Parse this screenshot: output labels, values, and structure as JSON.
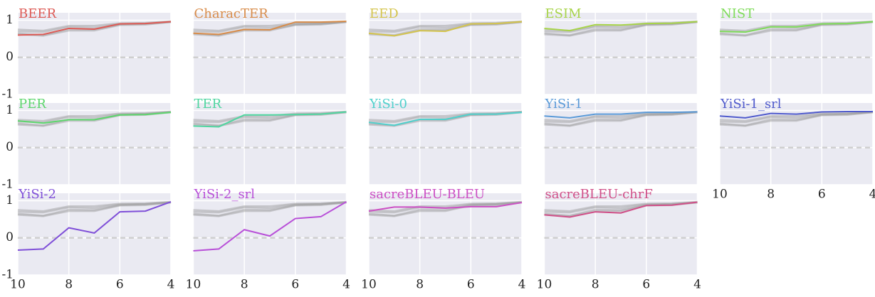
{
  "chart_data": {
    "type": "line",
    "x": [
      10,
      9,
      8,
      7,
      6,
      5,
      4
    ],
    "xlim": [
      10,
      4
    ],
    "xticks": [
      10,
      8,
      6,
      4
    ],
    "ylim": [
      -1,
      1.2
    ],
    "yticks": [
      -1,
      0,
      1
    ],
    "grid": true,
    "reference_line": 0,
    "background_color": "#9a9a9a",
    "background": [
      [
        0.7,
        0.68,
        0.82,
        0.8,
        0.9,
        0.91,
        0.96
      ],
      [
        0.65,
        0.6,
        0.76,
        0.75,
        0.88,
        0.9,
        0.95
      ],
      [
        0.75,
        0.72,
        0.85,
        0.85,
        0.92,
        0.93,
        0.97
      ],
      [
        0.62,
        0.58,
        0.72,
        0.72,
        0.87,
        0.88,
        0.95
      ]
    ],
    "panels": [
      {
        "title": "BEER",
        "color": "#dd5a55",
        "values": [
          0.6,
          0.62,
          0.78,
          0.76,
          0.9,
          0.91,
          0.96
        ]
      },
      {
        "title": "CharacTER",
        "color": "#d88c4a",
        "values": [
          0.65,
          0.62,
          0.75,
          0.74,
          0.95,
          0.95,
          0.97
        ]
      },
      {
        "title": "EED",
        "color": "#d4c44c",
        "values": [
          0.65,
          0.58,
          0.72,
          0.7,
          0.9,
          0.91,
          0.96
        ]
      },
      {
        "title": "ESIM",
        "color": "#a8d44a",
        "values": [
          0.78,
          0.72,
          0.88,
          0.87,
          0.91,
          0.92,
          0.96
        ]
      },
      {
        "title": "NIST",
        "color": "#7fdc5a",
        "values": [
          0.7,
          0.68,
          0.82,
          0.82,
          0.9,
          0.91,
          0.96
        ]
      },
      {
        "title": "PER",
        "color": "#5cd66c",
        "values": [
          0.72,
          0.66,
          0.75,
          0.75,
          0.88,
          0.89,
          0.95
        ]
      },
      {
        "title": "TER",
        "color": "#4fd6a0",
        "values": [
          0.58,
          0.56,
          0.88,
          0.88,
          0.89,
          0.9,
          0.96
        ]
      },
      {
        "title": "YiSi-0",
        "color": "#4fd0cc",
        "values": [
          0.68,
          0.6,
          0.76,
          0.76,
          0.9,
          0.9,
          0.95
        ]
      },
      {
        "title": "YiSi-1",
        "color": "#5a9ad8",
        "values": [
          0.85,
          0.8,
          0.9,
          0.9,
          0.95,
          0.95,
          0.96
        ]
      },
      {
        "title": "YiSi-1_srl",
        "color": "#4f5acc",
        "values": [
          0.85,
          0.8,
          0.92,
          0.9,
          0.96,
          0.97,
          0.97
        ]
      },
      {
        "title": "YiSi-2",
        "color": "#7f4fd8",
        "values": [
          -0.33,
          -0.3,
          0.27,
          0.13,
          0.7,
          0.72,
          0.97
        ]
      },
      {
        "title": "YiSi-2_srl",
        "color": "#b84fd8",
        "values": [
          -0.35,
          -0.3,
          0.22,
          0.05,
          0.52,
          0.57,
          0.97
        ]
      },
      {
        "title": "sacreBLEU-BLEU",
        "color": "#cc4fc4",
        "values": [
          0.72,
          0.83,
          0.83,
          0.8,
          0.84,
          0.84,
          0.95
        ]
      },
      {
        "title": "sacreBLEU-chrF",
        "color": "#d04f88",
        "values": [
          0.62,
          0.56,
          0.7,
          0.67,
          0.87,
          0.88,
          0.96
        ]
      }
    ]
  }
}
